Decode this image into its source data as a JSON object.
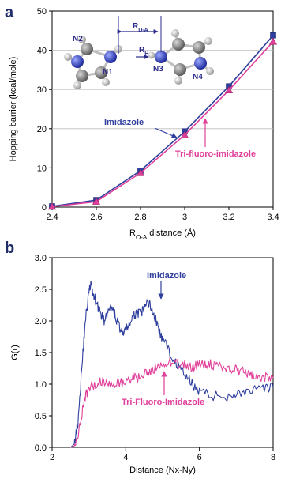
{
  "chart_data": [
    {
      "type": "line",
      "panel_label": "a",
      "xlabel_main": "R",
      "xlabel_sub": "O-A",
      "xlabel_rest": " distance (Å)",
      "ylabel": "Hopping barrier (kcal/mole)",
      "xlim": [
        2.4,
        3.4
      ],
      "ylim": [
        0,
        50
      ],
      "xticks": [
        "2.4",
        "2.6",
        "2.8",
        "3",
        "3.2",
        "3.4"
      ],
      "xtick_values": [
        2.4,
        2.6,
        2.8,
        3.0,
        3.2,
        3.4
      ],
      "yticks": [
        "0",
        "10",
        "20",
        "30",
        "40",
        "50"
      ],
      "ytick_values": [
        0,
        10,
        20,
        30,
        40,
        50
      ],
      "series": [
        {
          "name": "Imidazole",
          "color": "#2f3f9e",
          "marker": "square",
          "x": [
            2.4,
            2.6,
            2.8,
            3.0,
            3.2,
            3.4
          ],
          "y": [
            0.2,
            1.8,
            9.3,
            19.3,
            30.8,
            43.8
          ]
        },
        {
          "name": "Tri-fluoro-imidazole",
          "color": "#e0409a",
          "marker": "triangle",
          "x": [
            2.4,
            2.6,
            2.8,
            3.0,
            3.2,
            3.4
          ],
          "y": [
            0.1,
            1.4,
            8.7,
            18.4,
            29.8,
            42.2
          ]
        }
      ],
      "annotations": {
        "imidazole": "Imidazole",
        "trifluoro": "Tri-fluoro-imidazole",
        "r_da_main": "R",
        "r_da_sub": "D-A",
        "r_h_main": "R",
        "r_h_sub": "H",
        "n1": "N1",
        "n2": "N2",
        "n3": "N3",
        "n4": "N4"
      }
    },
    {
      "type": "line",
      "panel_label": "b",
      "xlabel": "Distance (Nx-Ny)",
      "ylabel": "G(r)",
      "xlim": [
        2,
        8
      ],
      "ylim": [
        0,
        3.0
      ],
      "xticks": [
        "2",
        "4",
        "6",
        "8"
      ],
      "xtick_values": [
        2,
        4,
        6,
        8
      ],
      "yticks": [
        "0.0",
        "0.5",
        "1.0",
        "1.5",
        "2.0",
        "2.5",
        "3.0"
      ],
      "ytick_values": [
        0,
        0.5,
        1.0,
        1.5,
        2.0,
        2.5,
        3.0
      ],
      "series": [
        {
          "name": "Imidazole",
          "color": "#2f3f9e",
          "x": [
            2.5,
            2.6,
            2.7,
            2.8,
            2.9,
            3.0,
            3.05,
            3.1,
            3.2,
            3.3,
            3.4,
            3.5,
            3.6,
            3.7,
            3.8,
            3.9,
            4.0,
            4.1,
            4.2,
            4.3,
            4.4,
            4.5,
            4.6,
            4.7,
            4.8,
            4.9,
            5.0,
            5.2,
            5.4,
            5.6,
            5.8,
            6.0,
            6.3,
            6.6,
            6.9,
            7.2,
            7.5,
            7.8,
            8.0
          ],
          "y": [
            0.0,
            0.05,
            0.4,
            1.2,
            2.0,
            2.45,
            2.6,
            2.45,
            2.3,
            2.15,
            2.0,
            2.1,
            2.2,
            2.1,
            1.95,
            1.8,
            1.85,
            1.95,
            2.05,
            2.15,
            2.1,
            2.2,
            2.3,
            2.2,
            2.05,
            1.85,
            1.7,
            1.5,
            1.3,
            1.15,
            1.0,
            0.9,
            0.82,
            0.8,
            0.83,
            0.88,
            0.9,
            0.92,
            0.95
          ]
        },
        {
          "name": "Tri-Fluoro-Imidazole",
          "color": "#e0409a",
          "x": [
            2.5,
            2.6,
            2.7,
            2.8,
            2.9,
            3.0,
            3.2,
            3.4,
            3.6,
            3.8,
            4.0,
            4.2,
            4.4,
            4.6,
            4.8,
            5.0,
            5.2,
            5.4,
            5.6,
            5.8,
            6.0,
            6.2,
            6.4,
            6.6,
            6.8,
            7.0,
            7.2,
            7.4,
            7.6,
            7.8,
            8.0
          ],
          "y": [
            0.0,
            0.02,
            0.15,
            0.5,
            0.8,
            0.95,
            1.0,
            1.05,
            1.02,
            1.0,
            1.05,
            1.1,
            1.12,
            1.18,
            1.25,
            1.3,
            1.35,
            1.32,
            1.3,
            1.28,
            1.3,
            1.32,
            1.3,
            1.28,
            1.25,
            1.22,
            1.2,
            1.15,
            1.12,
            1.1,
            1.1
          ]
        }
      ],
      "annotations": {
        "imidazole": "Imidazole",
        "trifluoro": "Tri-Fluoro-Imidazole"
      }
    }
  ]
}
